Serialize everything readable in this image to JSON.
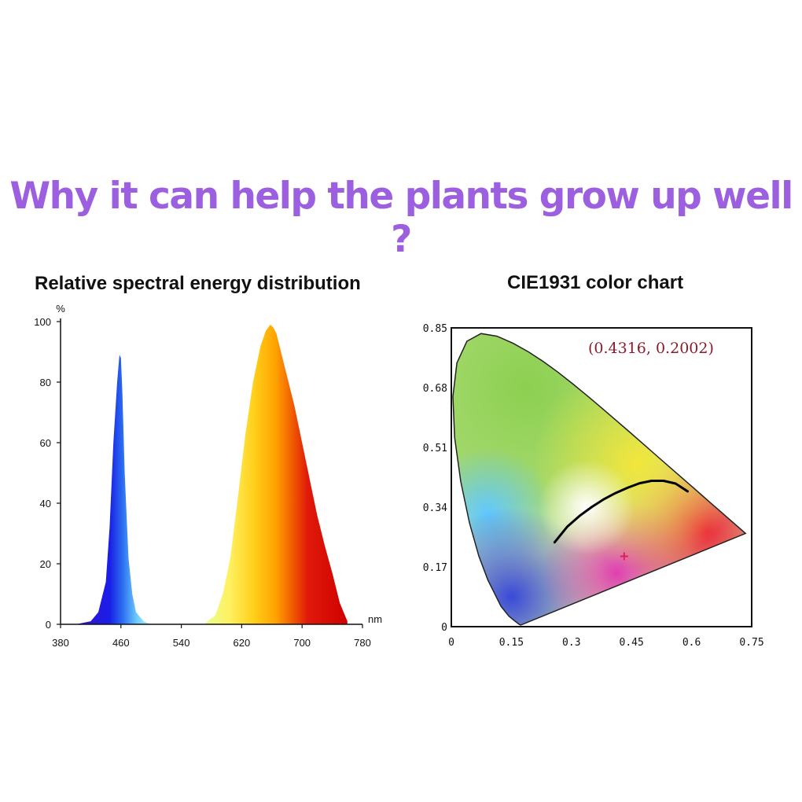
{
  "headline": "Why it can help the plants grow up well ?",
  "colors": {
    "headline": "#9b5fe0",
    "coordinate_label": "#8a1c2b",
    "white_point_marker": "#e0205a"
  },
  "chart_data": [
    {
      "type": "area",
      "title": "Relative spectral energy distribution",
      "xlabel": "nm",
      "ylabel": "%",
      "xlim": [
        380,
        780
      ],
      "ylim": [
        0,
        100
      ],
      "x_ticks": [
        "380",
        "460",
        "540",
        "620",
        "700",
        "780"
      ],
      "y_ticks": [
        "100",
        "80",
        "60",
        "40",
        "20",
        "0"
      ],
      "grid": false,
      "series": [
        {
          "x": [
            400,
            420,
            430,
            440,
            445,
            450,
            455,
            458,
            460,
            462,
            465,
            470,
            475,
            480,
            490,
            500
          ],
          "y": [
            0,
            1,
            4,
            14,
            32,
            60,
            80,
            89,
            88,
            76,
            50,
            22,
            10,
            4,
            1,
            0
          ]
        },
        {
          "x": [
            570,
            585,
            595,
            605,
            615,
            625,
            635,
            645,
            652,
            658,
            662,
            666,
            672,
            680,
            690,
            700,
            710,
            720,
            730,
            740,
            750,
            760
          ],
          "y": [
            0,
            3,
            10,
            22,
            42,
            63,
            80,
            92,
            97,
            99,
            98,
            96,
            90,
            82,
            72,
            60,
            48,
            36,
            26,
            17,
            7,
            1
          ]
        }
      ]
    },
    {
      "type": "scatter",
      "title": "CIE1931 color chart",
      "xlim": [
        0,
        0.75
      ],
      "ylim": [
        0,
        0.85
      ],
      "x_ticks": [
        "0",
        "0.15",
        "0.3",
        "0.45",
        "0.6",
        "0.75"
      ],
      "y_ticks": [
        "0.85",
        "0.68",
        "0.51",
        "0.34",
        "0.17",
        "0"
      ],
      "grid": false,
      "coordinate_label": "(0.4316, 0.2002)",
      "point": {
        "x": 0.4316,
        "y": 0.2002
      },
      "spectral_locus": {
        "x": [
          0.1741,
          0.1726,
          0.1689,
          0.1566,
          0.144,
          0.1241,
          0.0913,
          0.0687,
          0.0454,
          0.0235,
          0.0082,
          0.0039,
          0.0139,
          0.0389,
          0.0743,
          0.1142,
          0.1547,
          0.1929,
          0.2296,
          0.2658,
          0.3016,
          0.3373,
          0.3731,
          0.4087,
          0.4441,
          0.4788,
          0.5125,
          0.5448,
          0.5752,
          0.6029,
          0.627,
          0.6482,
          0.6658,
          0.6915,
          0.7347
        ],
        "y": [
          0.005,
          0.0048,
          0.0069,
          0.0177,
          0.0297,
          0.0578,
          0.1327,
          0.2007,
          0.295,
          0.4127,
          0.5384,
          0.6548,
          0.7502,
          0.812,
          0.8338,
          0.8262,
          0.8059,
          0.7816,
          0.7543,
          0.7243,
          0.6923,
          0.6589,
          0.6245,
          0.5896,
          0.5547,
          0.5202,
          0.4866,
          0.4544,
          0.4242,
          0.3965,
          0.3725,
          0.3514,
          0.334,
          0.3083,
          0.2653
        ]
      },
      "planckian_locus": {
        "x": [
          0.258,
          0.29,
          0.32,
          0.35,
          0.38,
          0.41,
          0.44,
          0.47,
          0.5,
          0.53,
          0.56,
          0.59
        ],
        "y": [
          0.24,
          0.285,
          0.315,
          0.34,
          0.362,
          0.38,
          0.395,
          0.408,
          0.415,
          0.415,
          0.407,
          0.385
        ]
      }
    }
  ]
}
